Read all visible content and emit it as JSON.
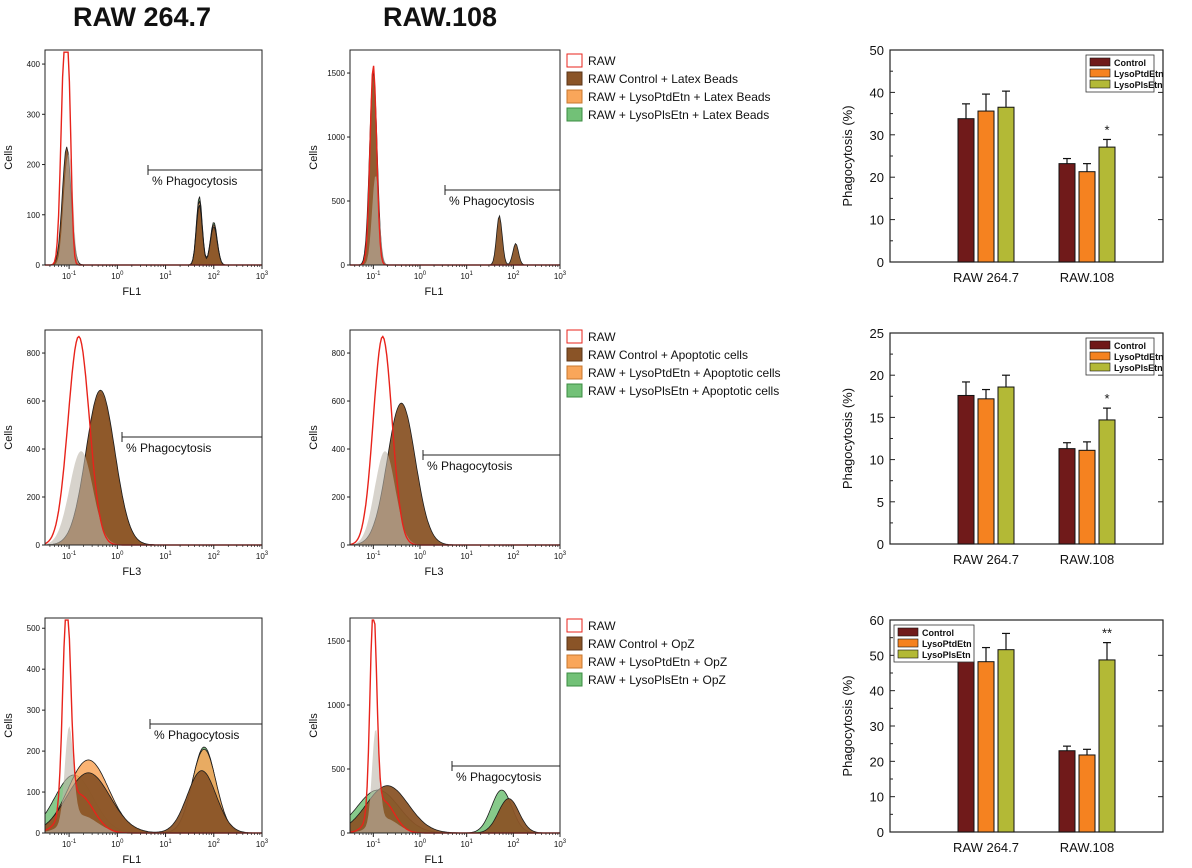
{
  "headers": {
    "col1": "RAW 264.7",
    "col2": "RAW.108"
  },
  "colors": {
    "raw_outline": "#e8231b",
    "control": "#8a5427",
    "lysoptdetn": "#f9a65a",
    "lysoplsetn": "#72c177",
    "bar_control": "#701a1a",
    "bar_lysoptdetn": "#f58220",
    "bar_lysoplsetn": "#b3b936"
  },
  "rows": [
    {
      "hist_xlabel": "FL1",
      "gate_label": "% Phagocytosis",
      "legend": [
        "RAW",
        "RAW Control + Latex Beads",
        "RAW + LysoPtdEtn + Latex Beads",
        "RAW + LysoPlsEtn + Latex Beads"
      ],
      "hist1": {
        "ylabel": "Cells",
        "yticks": [
          "0",
          "100",
          "200",
          "300",
          "400"
        ]
      },
      "hist2": {
        "ylabel": "Cells",
        "yticks": [
          "0",
          "500",
          "1000",
          "1500"
        ]
      }
    },
    {
      "hist_xlabel": "FL3",
      "gate_label": "% Phagocytosis",
      "legend": [
        "RAW",
        "RAW Control + Apoptotic cells",
        "RAW + LysoPtdEtn + Apoptotic cells",
        "RAW + LysoPlsEtn + Apoptotic cells"
      ],
      "hist1": {
        "ylabel": "Cells",
        "yticks": [
          "0",
          "200",
          "400",
          "600",
          "800"
        ]
      },
      "hist2": {
        "ylabel": "Cells",
        "yticks": [
          "0",
          "200",
          "400",
          "600",
          "800"
        ]
      }
    },
    {
      "hist_xlabel": "FL1",
      "gate_label": "% Phagocytosis",
      "legend": [
        "RAW",
        "RAW Control + OpZ",
        "RAW + LysoPtdEtn + OpZ",
        "RAW + LysoPlsEtn + OpZ"
      ],
      "hist1": {
        "ylabel": "Cells",
        "yticks": [
          "0",
          "100",
          "200",
          "300",
          "400",
          "500"
        ]
      },
      "hist2": {
        "ylabel": "Cells",
        "yticks": [
          "0",
          "500",
          "1000",
          "1500"
        ]
      }
    }
  ],
  "chart_data": [
    {
      "type": "bar",
      "title": "",
      "ylabel": "Phagocytosis (%)",
      "ylim": [
        0,
        50
      ],
      "yticks": [
        0,
        10,
        20,
        30,
        40,
        50
      ],
      "categories": [
        "RAW 264.7",
        "RAW.108"
      ],
      "series": [
        {
          "name": "Control",
          "values": [
            33.8,
            23.2
          ],
          "errors": [
            3.5,
            1.2
          ]
        },
        {
          "name": "LysoPtdEtn",
          "values": [
            35.6,
            21.3
          ],
          "errors": [
            4.0,
            1.9
          ]
        },
        {
          "name": "LysoPlsEtn",
          "values": [
            36.5,
            27.1
          ],
          "errors": [
            3.8,
            1.8
          ]
        }
      ],
      "annotations": [
        {
          "category": "RAW.108",
          "series": "LysoPlsEtn",
          "text": "*"
        }
      ],
      "legend_position": "top-right"
    },
    {
      "type": "bar",
      "title": "",
      "ylabel": "Phagocytosis (%)",
      "ylim": [
        0,
        25
      ],
      "yticks": [
        0,
        5,
        10,
        15,
        20,
        25
      ],
      "categories": [
        "RAW 264.7",
        "RAW.108"
      ],
      "series": [
        {
          "name": "Control",
          "values": [
            17.6,
            11.3
          ],
          "errors": [
            1.6,
            0.7
          ]
        },
        {
          "name": "LysoPtdEtn",
          "values": [
            17.2,
            11.1
          ],
          "errors": [
            1.1,
            1.0
          ]
        },
        {
          "name": "LysoPlsEtn",
          "values": [
            18.6,
            14.7
          ],
          "errors": [
            1.4,
            1.4
          ]
        }
      ],
      "annotations": [
        {
          "category": "RAW.108",
          "series": "LysoPlsEtn",
          "text": "*"
        }
      ],
      "legend_position": "top-right"
    },
    {
      "type": "bar",
      "title": "",
      "ylabel": "Phagocytosis (%)",
      "ylim": [
        0,
        60
      ],
      "yticks": [
        0,
        10,
        20,
        30,
        40,
        50,
        60
      ],
      "categories": [
        "RAW 264.7",
        "RAW.108"
      ],
      "series": [
        {
          "name": "Control",
          "values": [
            48.3,
            23.0
          ],
          "errors": [
            4.8,
            1.3
          ]
        },
        {
          "name": "LysoPtdEtn",
          "values": [
            48.2,
            21.8
          ],
          "errors": [
            4.0,
            1.6
          ]
        },
        {
          "name": "LysoPlsEtn",
          "values": [
            51.6,
            48.7
          ],
          "errors": [
            4.6,
            4.9
          ]
        }
      ],
      "annotations": [
        {
          "category": "RAW.108",
          "series": "LysoPlsEtn",
          "text": "**"
        }
      ],
      "legend_position": "top-left"
    }
  ]
}
